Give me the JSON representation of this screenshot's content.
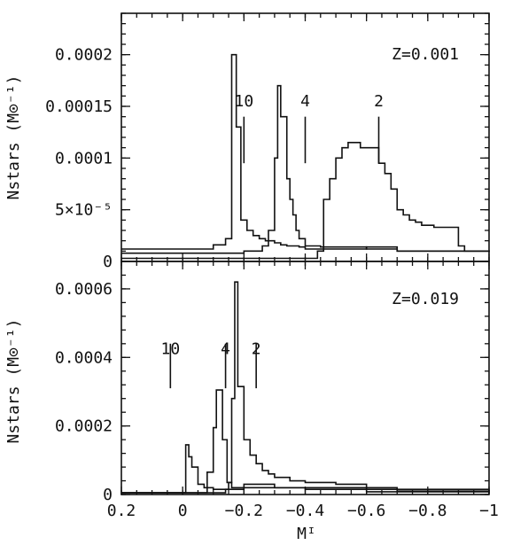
{
  "chart_data": [
    {
      "type": "line",
      "step": true,
      "panel_label": "Z=0.001",
      "ylabel": "Nstars (M⊙⁻¹)",
      "xlim": [
        0.2,
        -1
      ],
      "ylim": [
        0,
        0.00024
      ],
      "yticks": [
        {
          "value": 0,
          "label": "0"
        },
        {
          "value": 5e-05,
          "label": "5×10⁻⁵"
        },
        {
          "value": 0.0001,
          "label": "0.0001"
        },
        {
          "value": 0.00015,
          "label": "0.00015"
        },
        {
          "value": 0.0002,
          "label": "0.0002"
        }
      ],
      "series": [
        {
          "x": [
            0.2,
            0.05,
            -0.1,
            -0.14,
            -0.16,
            -0.175,
            -0.19,
            -0.21,
            -0.23,
            -0.25,
            -0.27,
            -0.3,
            -0.32,
            -0.34,
            -0.36,
            -0.38,
            -0.4,
            -0.6,
            -0.7,
            -1.0
          ],
          "y": [
            1.2e-05,
            1.2e-05,
            1.6e-05,
            2.2e-05,
            0.0002,
            0.00013,
            4e-05,
            3e-05,
            2.5e-05,
            2.2e-05,
            2e-05,
            1.8e-05,
            1.6e-05,
            1.5e-05,
            1.5e-05,
            1.4e-05,
            1.2e-05,
            1.4e-05,
            1e-05,
            9e-06
          ]
        },
        {
          "x": [
            0.2,
            0.0,
            -0.2,
            -0.26,
            -0.28,
            -0.3,
            -0.31,
            -0.32,
            -0.34,
            -0.35,
            -0.36,
            -0.37,
            -0.38,
            -0.4,
            -0.45,
            -0.6,
            -0.7,
            -1.0
          ],
          "y": [
            8e-06,
            8e-06,
            1e-05,
            1.5e-05,
            3e-05,
            0.0001,
            0.00017,
            0.00014,
            8e-05,
            6e-05,
            4.5e-05,
            3e-05,
            2.2e-05,
            1.5e-05,
            1.4e-05,
            1.2e-05,
            1e-05,
            9e-06
          ]
        },
        {
          "x": [
            0.2,
            -0.2,
            -0.44,
            -0.46,
            -0.48,
            -0.5,
            -0.52,
            -0.54,
            -0.58,
            -0.62,
            -0.64,
            -0.66,
            -0.68,
            -0.7,
            -0.72,
            -0.74,
            -0.76,
            -0.78,
            -0.8,
            -0.82,
            -0.86,
            -0.9,
            -0.92,
            -1.0
          ],
          "y": [
            3e-06,
            3e-06,
            1e-05,
            6e-05,
            8e-05,
            0.0001,
            0.00011,
            0.000115,
            0.00011,
            0.00011,
            9.5e-05,
            8.5e-05,
            7e-05,
            5e-05,
            4.5e-05,
            4e-05,
            3.8e-05,
            3.5e-05,
            3.5e-05,
            3.3e-05,
            3.3e-05,
            1.5e-05,
            1e-05,
            9e-06
          ]
        }
      ],
      "annotations": [
        {
          "label": "10",
          "x": -0.2,
          "marker_y": [
            9.5e-05,
            0.00014
          ],
          "text_y": 0.00015
        },
        {
          "label": "4",
          "x": -0.4,
          "marker_y": [
            9.5e-05,
            0.00014
          ],
          "text_y": 0.00015
        },
        {
          "label": "2",
          "x": -0.64,
          "marker_y": [
            9.5e-05,
            0.00014
          ],
          "text_y": 0.00015
        }
      ]
    },
    {
      "type": "line",
      "step": true,
      "panel_label": "Z=0.019",
      "ylabel": "Nstars (M⊙⁻¹)",
      "xlabel": "Mᴵ",
      "xlim": [
        0.2,
        -1
      ],
      "ylim": [
        0,
        0.00068
      ],
      "xticks": [
        {
          "value": 0.2,
          "label": "0.2"
        },
        {
          "value": 0,
          "label": "0"
        },
        {
          "value": -0.2,
          "label": "−0.2"
        },
        {
          "value": -0.4,
          "label": "−0.4"
        },
        {
          "value": -0.6,
          "label": "−0.6"
        },
        {
          "value": -0.8,
          "label": "−0.8"
        },
        {
          "value": -1,
          "label": "−1"
        }
      ],
      "yticks": [
        {
          "value": 0,
          "label": "0"
        },
        {
          "value": 0.0002,
          "label": "0.0002"
        },
        {
          "value": 0.0004,
          "label": "0.0004"
        },
        {
          "value": 0.0006,
          "label": "0.0006"
        }
      ],
      "series": [
        {
          "x": [
            0.2,
            0.0,
            -0.01,
            -0.02,
            -0.03,
            -0.05,
            -0.07,
            -0.1,
            -0.2,
            -0.4,
            -1.0
          ],
          "y": [
            5e-06,
            5e-06,
            0.000145,
            0.00011,
            8e-05,
            3e-05,
            2e-05,
            1.5e-05,
            2e-05,
            1.5e-05,
            5e-06
          ]
        },
        {
          "x": [
            0.2,
            -0.05,
            -0.08,
            -0.1,
            -0.11,
            -0.13,
            -0.145,
            -0.16,
            -0.2,
            -0.3,
            -0.6,
            -1.0
          ],
          "y": [
            5e-06,
            5e-06,
            6.5e-05,
            0.000195,
            0.000305,
            0.00016,
            3.5e-05,
            2e-05,
            3e-05,
            2e-05,
            8e-06,
            5e-06
          ]
        },
        {
          "x": [
            0.2,
            -0.1,
            -0.14,
            -0.15,
            -0.16,
            -0.17,
            -0.18,
            -0.2,
            -0.22,
            -0.24,
            -0.26,
            -0.28,
            -0.3,
            -0.35,
            -0.4,
            -0.5,
            -0.6,
            -0.7,
            -1.0
          ],
          "y": [
            5e-06,
            5e-06,
            1.5e-05,
            3.5e-05,
            0.00028,
            0.00062,
            0.000315,
            0.00016,
            0.000115,
            9e-05,
            7e-05,
            6e-05,
            5e-05,
            4e-05,
            3.5e-05,
            3e-05,
            2e-05,
            1e-05,
            5e-06
          ]
        }
      ],
      "annotations": [
        {
          "label": "10",
          "x": 0.04,
          "marker_y": [
            0.00031,
            0.00044
          ],
          "text_y": 0.00041
        },
        {
          "label": "4",
          "x": -0.14,
          "marker_y": [
            0.00031,
            0.00044
          ],
          "text_y": 0.00041
        },
        {
          "label": "2",
          "x": -0.24,
          "marker_y": [
            0.00031,
            0.00044
          ],
          "text_y": 0.00041
        }
      ]
    }
  ]
}
